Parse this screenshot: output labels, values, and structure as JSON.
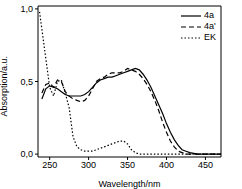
{
  "chart_data": {
    "type": "line",
    "x_label": "Wavelength/nm",
    "y_label": "Absorption/a.u.",
    "xlim": [
      235,
      470
    ],
    "xticks": [
      250,
      300,
      350,
      400,
      450
    ],
    "ylim": [
      -0.02,
      1.02
    ],
    "yticks": [
      {
        "value": 0,
        "label": "0,0"
      },
      {
        "value": 0.5,
        "label": "0,5"
      },
      {
        "value": 1.0,
        "label": "1,0"
      }
    ],
    "legend": "upper right",
    "grid": false,
    "x": [
      237,
      240,
      245,
      250,
      255,
      260,
      265,
      270,
      275,
      280,
      285,
      290,
      295,
      300,
      305,
      310,
      315,
      320,
      325,
      330,
      335,
      340,
      345,
      350,
      355,
      360,
      365,
      370,
      375,
      380,
      385,
      390,
      395,
      400,
      405,
      410,
      415,
      420,
      425,
      430,
      435,
      440,
      470
    ],
    "series": [
      {
        "name": "4a",
        "color": "#000000",
        "line_style": "solid",
        "values": [
          null,
          0.38,
          0.45,
          0.47,
          0.46,
          0.45,
          0.43,
          0.41,
          0.4,
          0.4,
          0.4,
          0.4,
          0.41,
          0.43,
          0.46,
          0.49,
          0.51,
          0.52,
          0.53,
          0.53,
          0.54,
          0.55,
          0.56,
          0.57,
          0.58,
          0.59,
          0.58,
          0.55,
          0.51,
          0.46,
          0.4,
          0.34,
          0.28,
          0.21,
          0.15,
          0.1,
          0.06,
          0.03,
          0.02,
          0.01,
          0.005,
          0,
          0
        ]
      },
      {
        "name": "4a'",
        "color": "#000000",
        "line_style": "dashed",
        "values": [
          null,
          0.42,
          0.48,
          0.49,
          0.46,
          0.51,
          0.5,
          0.43,
          0.4,
          0.38,
          0.37,
          0.36,
          0.37,
          0.4,
          0.45,
          0.5,
          0.52,
          0.53,
          0.55,
          0.56,
          0.56,
          0.56,
          0.57,
          0.59,
          0.58,
          0.57,
          0.55,
          0.52,
          0.48,
          0.43,
          0.37,
          0.3,
          0.22,
          0.15,
          0.09,
          0.05,
          0.02,
          0.01,
          0,
          0,
          0,
          0,
          0
        ]
      },
      {
        "name": "EK",
        "color": "#000000",
        "line_style": "dotted",
        "values": [
          0.98,
          0.86,
          0.66,
          0.46,
          0.4,
          0.5,
          0.51,
          0.42,
          0.32,
          0.12,
          0.05,
          0.03,
          0.02,
          0.02,
          0.02,
          0.03,
          0.04,
          0.05,
          0.06,
          0.07,
          0.08,
          0.09,
          0.09,
          0.07,
          0.03,
          0.01,
          0,
          0,
          0,
          0,
          0,
          0,
          0,
          0,
          0,
          0,
          0,
          0,
          0,
          0,
          0,
          0,
          0
        ]
      }
    ]
  }
}
